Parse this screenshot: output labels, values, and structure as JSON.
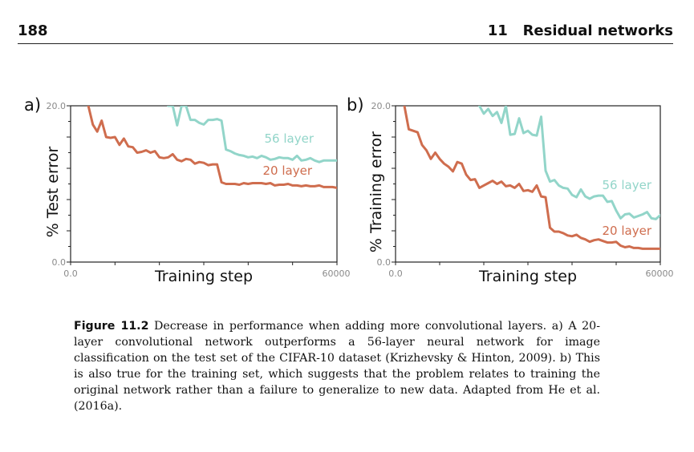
{
  "header": {
    "page_number": "188",
    "running_head": "11   Residual networks"
  },
  "figure": {
    "colors": {
      "56 layer": "#92d5c9",
      "20 layer": "#cf6d4e",
      "axis": "#222222",
      "tick_label": "#8a8a8a"
    }
  },
  "chart_data": [
    {
      "type": "line",
      "panel_label": "a)",
      "xlabel": "Training step",
      "ylabel": "% Test error",
      "xlim": [
        0,
        60000
      ],
      "ylim": [
        0,
        20
      ],
      "x_tick_labels": [
        "0.0",
        "60000"
      ],
      "y_tick_labels": [
        "0.0",
        "20.0"
      ],
      "legend": "inline labels at right end of lines",
      "series": [
        {
          "name": "56 layer",
          "x": [
            22000,
            23000,
            24000,
            25000,
            26000,
            27000,
            28000,
            29000,
            30000,
            31000,
            32000,
            33000,
            34000,
            35000,
            36000,
            37000,
            38000,
            39000,
            40000,
            41000,
            42000,
            43000,
            44000,
            45000,
            46000,
            47000,
            48000,
            49000,
            50000,
            51000,
            52000,
            53000,
            54000,
            55000,
            56000,
            57000,
            58000,
            59000,
            60000
          ],
          "y": [
            20.0,
            20.0,
            17.5,
            20.0,
            20.0,
            18.2,
            18.2,
            17.8,
            17.6,
            18.2,
            18.2,
            18.3,
            18.1,
            14.4,
            14.2,
            13.9,
            13.7,
            13.6,
            13.4,
            13.5,
            13.3,
            13.6,
            13.4,
            13.1,
            13.2,
            13.4,
            13.3,
            13.3,
            13.1,
            13.6,
            13.0,
            13.1,
            13.3,
            13.0,
            12.8,
            13.0,
            13.0,
            13.0,
            13.0
          ]
        },
        {
          "name": "20 layer",
          "x": [
            4000,
            5000,
            6000,
            7000,
            8000,
            9000,
            10000,
            11000,
            12000,
            13000,
            14000,
            15000,
            16000,
            17000,
            18000,
            19000,
            20000,
            21000,
            22000,
            23000,
            24000,
            25000,
            26000,
            27000,
            28000,
            29000,
            30000,
            31000,
            32000,
            33000,
            34000,
            35000,
            36000,
            37000,
            38000,
            39000,
            40000,
            41000,
            42000,
            43000,
            44000,
            45000,
            46000,
            47000,
            48000,
            49000,
            50000,
            51000,
            52000,
            53000,
            54000,
            55000,
            56000,
            57000,
            58000,
            59000,
            60000
          ],
          "y": [
            20.0,
            17.6,
            16.7,
            18.1,
            16.0,
            15.9,
            16.0,
            15.0,
            15.8,
            14.8,
            14.7,
            14.0,
            14.1,
            14.3,
            14.0,
            14.2,
            13.4,
            13.3,
            13.4,
            13.8,
            13.1,
            12.9,
            13.2,
            13.1,
            12.6,
            12.8,
            12.7,
            12.4,
            12.5,
            12.5,
            10.2,
            10.0,
            10.0,
            10.0,
            9.9,
            10.1,
            10.0,
            10.1,
            10.1,
            10.1,
            10.0,
            10.1,
            9.8,
            9.9,
            9.9,
            10.0,
            9.8,
            9.8,
            9.7,
            9.8,
            9.7,
            9.7,
            9.8,
            9.6,
            9.6,
            9.6,
            9.5
          ]
        }
      ]
    },
    {
      "type": "line",
      "panel_label": "b)",
      "xlabel": "Training step",
      "ylabel": "% Training error",
      "xlim": [
        0,
        60000
      ],
      "ylim": [
        0,
        20
      ],
      "x_tick_labels": [
        "0.0",
        "60000"
      ],
      "y_tick_labels": [
        "0.0",
        "20.0"
      ],
      "legend": "inline labels at right end of lines",
      "series": [
        {
          "name": "56 layer",
          "x": [
            19000,
            20000,
            21000,
            22000,
            23000,
            24000,
            25000,
            26000,
            27000,
            28000,
            29000,
            30000,
            31000,
            32000,
            33000,
            34000,
            35000,
            36000,
            37000,
            38000,
            39000,
            40000,
            41000,
            42000,
            43000,
            44000,
            45000,
            46000,
            47000,
            48000,
            49000,
            50000,
            51000,
            52000,
            53000,
            54000,
            55000,
            56000,
            57000,
            58000,
            59000,
            60000
          ],
          "y": [
            20.0,
            19.0,
            19.6,
            18.7,
            19.2,
            17.8,
            20.0,
            16.3,
            16.4,
            18.4,
            16.5,
            16.8,
            16.3,
            16.2,
            18.6,
            11.7,
            10.3,
            10.5,
            9.8,
            9.5,
            9.4,
            8.6,
            8.3,
            9.3,
            8.4,
            8.1,
            8.4,
            8.5,
            8.5,
            7.7,
            7.8,
            6.6,
            5.6,
            6.1,
            6.2,
            5.7,
            5.9,
            6.1,
            6.4,
            5.6,
            5.5,
            6.0
          ]
        },
        {
          "name": "20 layer",
          "x": [
            2000,
            3000,
            4000,
            5000,
            6000,
            7000,
            8000,
            9000,
            10000,
            11000,
            12000,
            13000,
            14000,
            15000,
            16000,
            17000,
            18000,
            19000,
            20000,
            21000,
            22000,
            23000,
            24000,
            25000,
            26000,
            27000,
            28000,
            29000,
            30000,
            31000,
            32000,
            33000,
            34000,
            35000,
            36000,
            37000,
            38000,
            39000,
            40000,
            41000,
            42000,
            43000,
            44000,
            45000,
            46000,
            47000,
            48000,
            49000,
            50000,
            51000,
            52000,
            53000,
            54000,
            55000,
            56000,
            57000,
            58000,
            59000,
            60000
          ],
          "y": [
            20.0,
            17.0,
            16.8,
            16.6,
            15.0,
            14.3,
            13.2,
            14.0,
            13.2,
            12.6,
            12.2,
            11.6,
            12.8,
            12.6,
            11.2,
            10.5,
            10.6,
            9.5,
            9.8,
            10.1,
            10.4,
            10.0,
            10.3,
            9.7,
            9.8,
            9.5,
            10.0,
            9.1,
            9.2,
            9.0,
            9.8,
            8.4,
            8.3,
            4.4,
            3.9,
            3.9,
            3.7,
            3.4,
            3.3,
            3.5,
            3.1,
            2.9,
            2.6,
            2.8,
            2.9,
            2.7,
            2.5,
            2.5,
            2.6,
            2.1,
            1.9,
            2.0,
            1.8,
            1.8,
            1.7,
            1.7,
            1.7,
            1.7,
            1.7
          ]
        }
      ]
    }
  ],
  "caption": {
    "label": "Figure 11.2",
    "text": " Decrease in performance when adding more convolutional layers. a) A 20-layer convolutional network outperforms a 56-layer neural network for image classification on the test set of the CIFAR-10 dataset (Krizhevsky & Hinton, 2009). b) This is also true for the training set, which suggests that the problem relates to training the original network rather than a failure to generalize to new data. Adapted from He et al. (2016a)."
  }
}
